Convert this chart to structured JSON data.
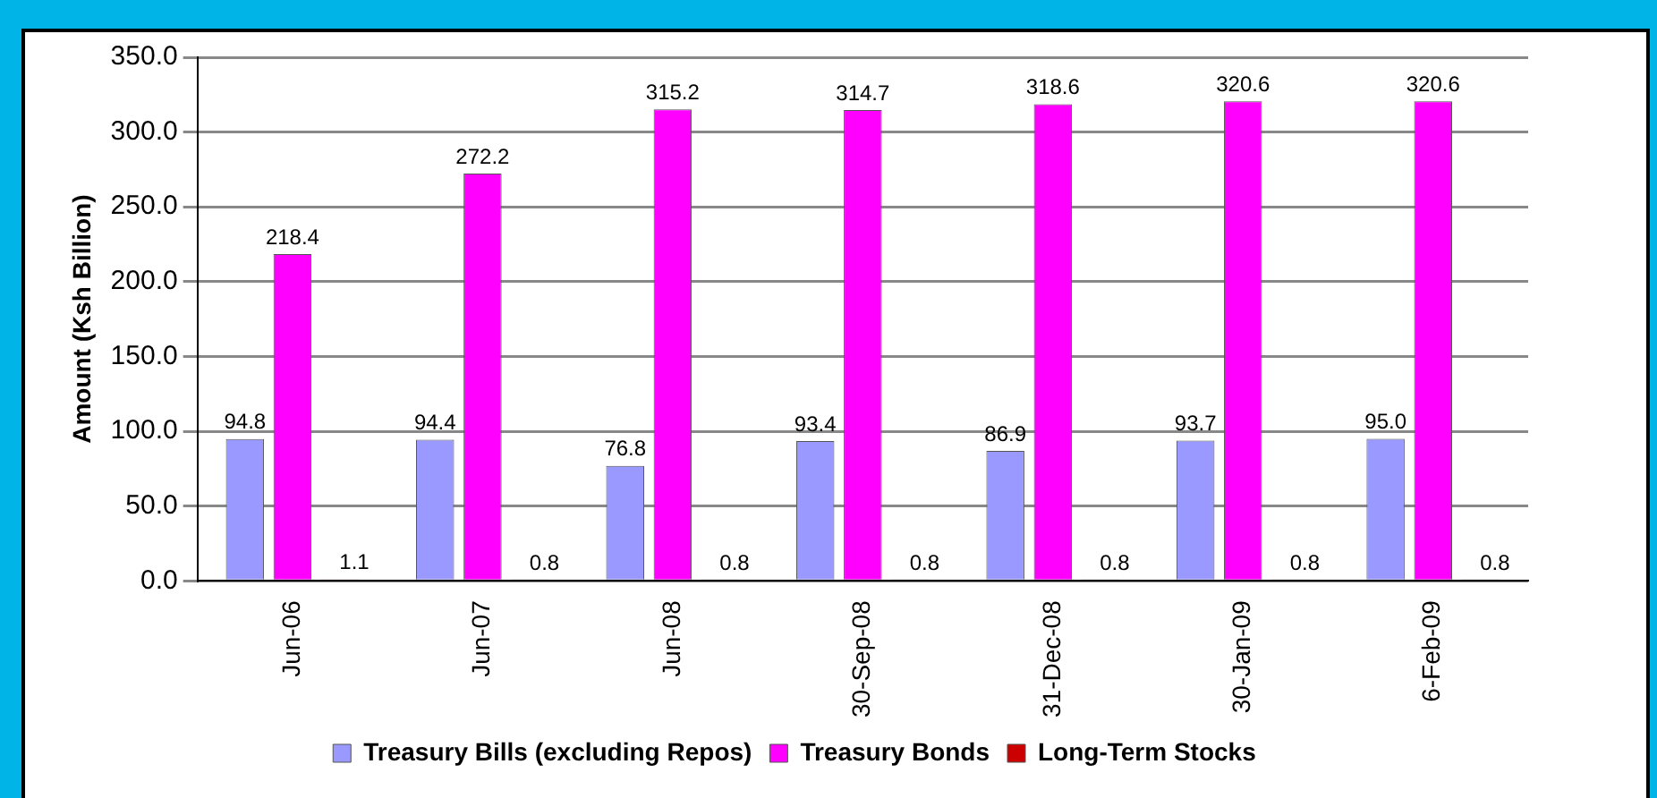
{
  "chart_data": {
    "type": "bar",
    "ylabel": "Amount (Ksh Billion)",
    "categories": [
      "Jun-06",
      "Jun-07",
      "Jun-08",
      "30-Sep-08",
      "31-Dec-08",
      "30-Jan-09",
      "6-Feb-09"
    ],
    "series": [
      {
        "name": "Treasury Bills (excluding Repos)",
        "color": "#9999ff",
        "values": [
          94.8,
          94.4,
          76.8,
          93.4,
          86.9,
          93.7,
          95.0
        ],
        "value_labels": [
          "94.8",
          "94.4",
          "76.8",
          "93.4",
          "86.9",
          "93.7",
          "95.0"
        ]
      },
      {
        "name": "Treasury Bonds",
        "color": "#ff00ff",
        "values": [
          218.4,
          272.2,
          315.2,
          314.7,
          318.6,
          320.6,
          320.6
        ],
        "value_labels": [
          "218.4",
          "272.2",
          "315.2",
          "314.7",
          "318.6",
          "320.6",
          "320.6"
        ]
      },
      {
        "name": "Long-Term Stocks",
        "color": "#cc0000",
        "values": [
          1.1,
          0.8,
          0.8,
          0.8,
          0.8,
          0.8,
          0.8
        ],
        "value_labels": [
          "1.1",
          "0.8",
          "0.8",
          "0.8",
          "0.8",
          "0.8",
          "0.8"
        ]
      }
    ],
    "ylim": [
      0,
      350
    ],
    "yticks": [
      {
        "value": 0,
        "label": "0.0"
      },
      {
        "value": 50,
        "label": "50.0"
      },
      {
        "value": 100,
        "label": "100.0"
      },
      {
        "value": 150,
        "label": "150.0"
      },
      {
        "value": 200,
        "label": "200.0"
      },
      {
        "value": 250,
        "label": "250.0"
      },
      {
        "value": 300,
        "label": "300.0"
      },
      {
        "value": 350,
        "label": "350.0"
      }
    ],
    "grid": "y",
    "legend": "bottom"
  }
}
